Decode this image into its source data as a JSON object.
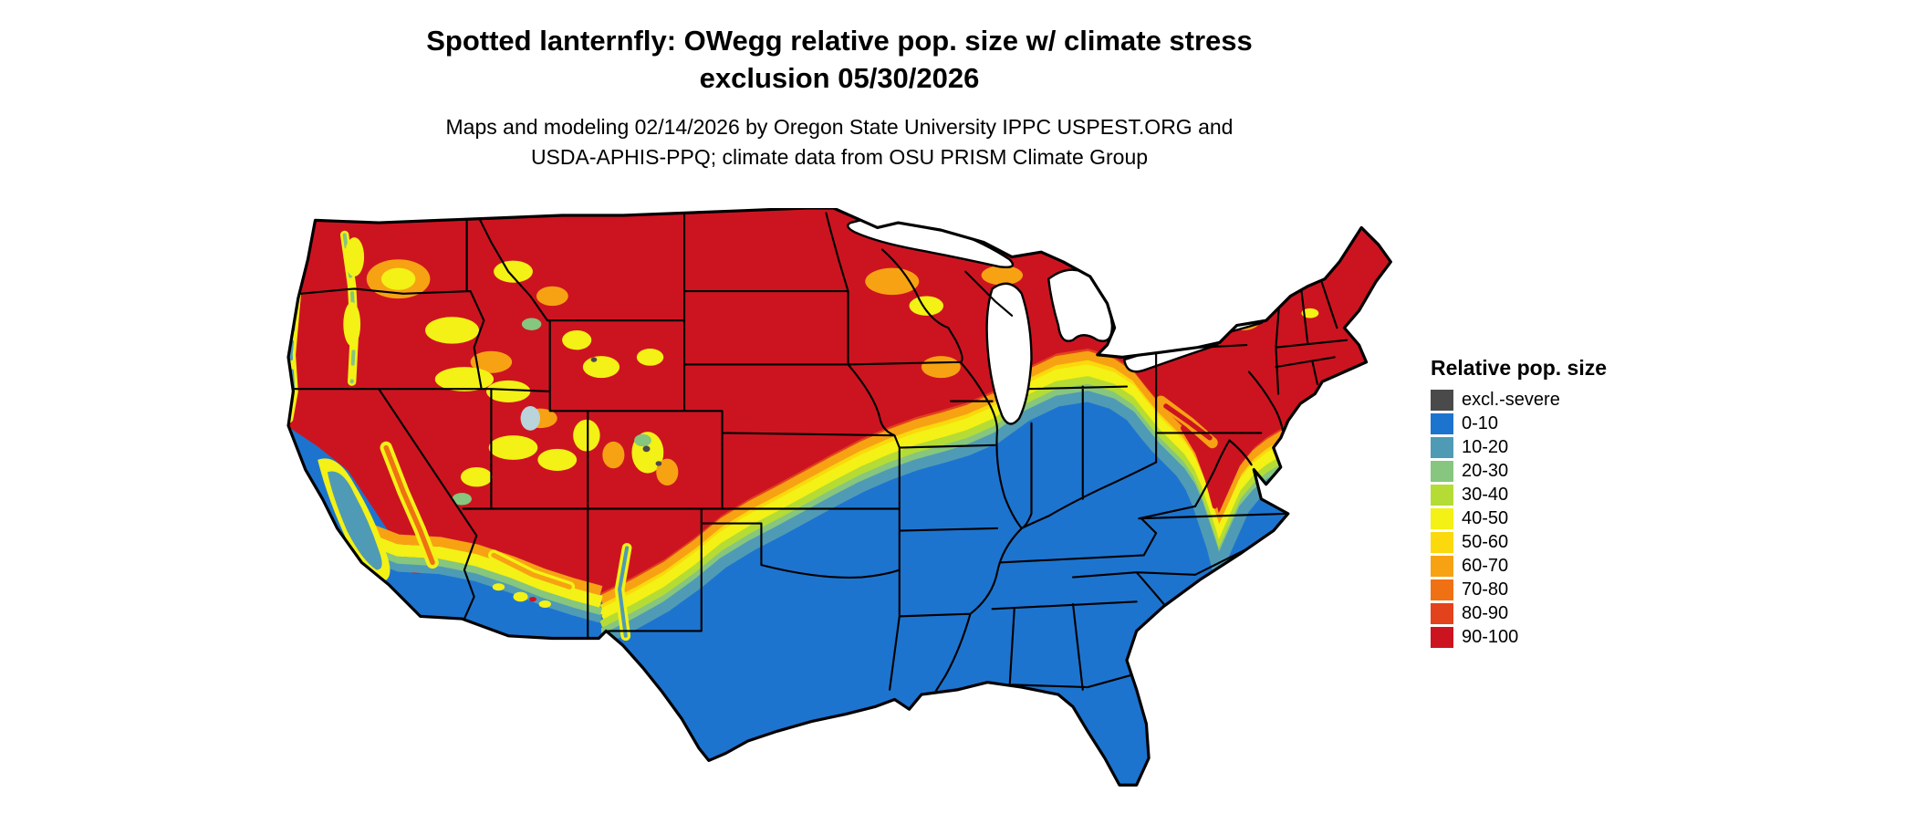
{
  "title_line1": "Spotted lanternfly: OWegg relative pop. size w/ climate stress",
  "title_line2": "exclusion 05/30/2026",
  "subtitle_line1": "Maps and modeling 02/14/2026 by Oregon State University IPPC USPEST.ORG and",
  "subtitle_line2": "USDA-APHIS-PPQ; climate data from OSU PRISM Climate Group",
  "legend": {
    "title": "Relative pop. size",
    "items": [
      {
        "key": "excl",
        "label": "excl.-severe",
        "color": "#4a4a4a"
      },
      {
        "key": "v0",
        "label": "0-10",
        "color": "#1d74cf"
      },
      {
        "key": "v10",
        "label": "10-20",
        "color": "#4f9bb5"
      },
      {
        "key": "v20",
        "label": "20-30",
        "color": "#86c67e"
      },
      {
        "key": "v30",
        "label": "30-40",
        "color": "#b4dc35"
      },
      {
        "key": "v40",
        "label": "40-50",
        "color": "#f3f115"
      },
      {
        "key": "v50",
        "label": "50-60",
        "color": "#fbd90c"
      },
      {
        "key": "v60",
        "label": "60-70",
        "color": "#f7a213"
      },
      {
        "key": "v70",
        "label": "70-80",
        "color": "#ef7113"
      },
      {
        "key": "v80",
        "label": "80-90",
        "color": "#e2421c"
      },
      {
        "key": "v90",
        "label": "90-100",
        "color": "#cc1420"
      }
    ]
  },
  "map": {
    "region": "Continental United States",
    "outline_color": "#000000",
    "water_color": "#ffffff",
    "pattern_note": "Northern states shaded 90-100 (red) grading through orange, yellow and green bands across the central US to 0-10 (blue) in the south; mottled yellow/orange transition across the mountain west and Appalachians."
  }
}
